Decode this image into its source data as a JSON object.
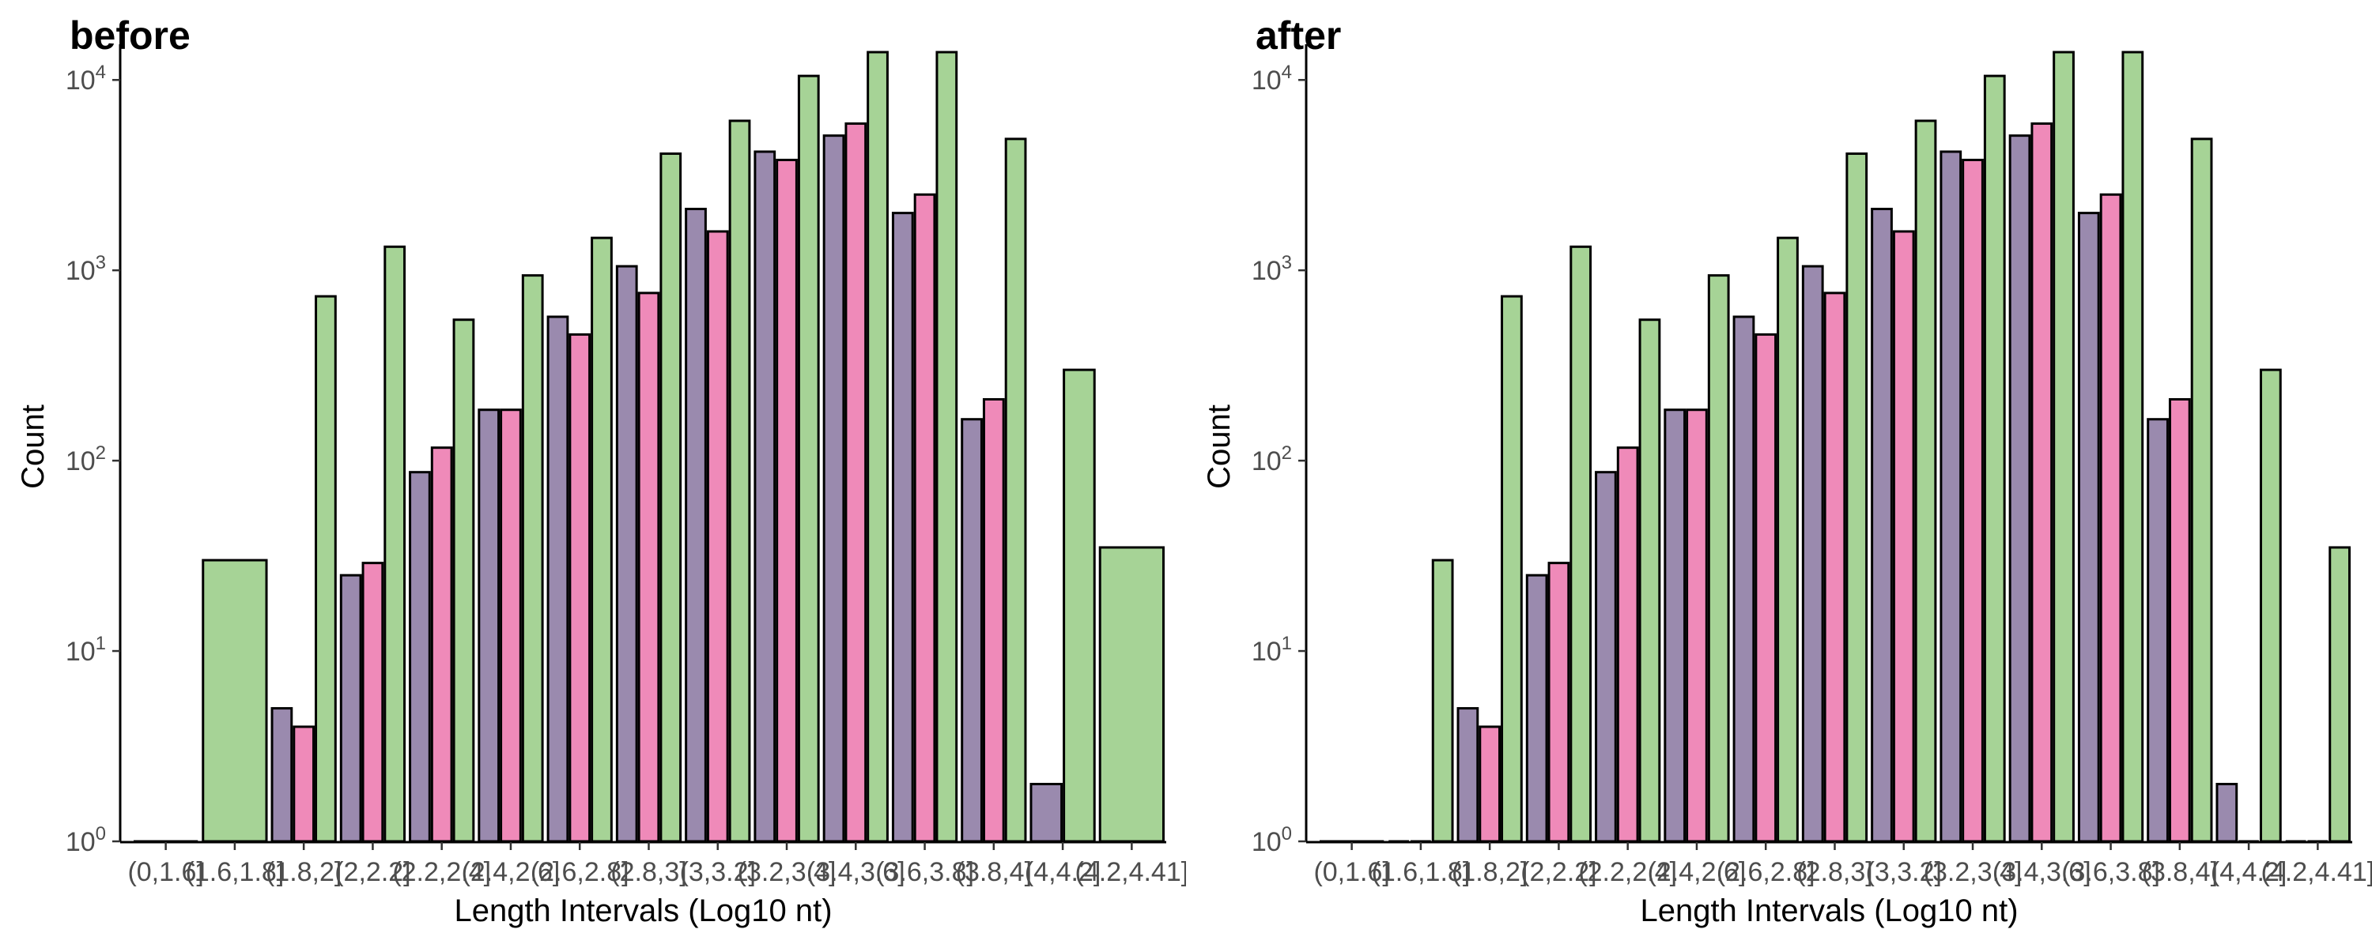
{
  "chart_data": [
    {
      "type": "bar",
      "title": "before",
      "xlabel": "Length Intervals (Log10 nt)",
      "ylabel": "Count",
      "scale": "log10",
      "ylim": [
        1,
        14000
      ],
      "yticks": [
        {
          "value": 1,
          "base": "10",
          "exp": "0"
        },
        {
          "value": 10,
          "base": "10",
          "exp": "1"
        },
        {
          "value": 100,
          "base": "10",
          "exp": "2"
        },
        {
          "value": 1000,
          "base": "10",
          "exp": "3"
        },
        {
          "value": 10000,
          "base": "10",
          "exp": "4"
        }
      ],
      "categories": [
        "(0,1.6]",
        "(1.6,1.8]",
        "(1.8,2]",
        "(2,2.2]",
        "(2.2,2.4]",
        "(2.4,2.6]",
        "(2.6,2.8]",
        "(2.8,3]",
        "(3,3.2]",
        "(3.2,3.4]",
        "(3.4,3.6]",
        "(3.6,3.8]",
        "(3.8,4]",
        "(4,4.2]",
        "(4.2,4.41]"
      ],
      "series_colors": [
        "#9a8aae",
        "#ef8ab9",
        "#a6d396"
      ],
      "groups": [
        {
          "values": [
            1
          ]
        },
        {
          "values": [
            30
          ]
        },
        {
          "values": [
            5,
            4,
            730
          ]
        },
        {
          "values": [
            25,
            29,
            1330
          ]
        },
        {
          "values": [
            87,
            117,
            550
          ]
        },
        {
          "values": [
            185,
            185,
            940
          ]
        },
        {
          "values": [
            570,
            460,
            1480
          ]
        },
        {
          "values": [
            1050,
            760,
            4100
          ]
        },
        {
          "values": [
            2100,
            1600,
            6100
          ]
        },
        {
          "values": [
            4200,
            3800,
            10500
          ]
        },
        {
          "values": [
            5100,
            5900,
            14000
          ]
        },
        {
          "values": [
            2000,
            2500,
            14000
          ]
        },
        {
          "values": [
            165,
            210,
            4900
          ]
        },
        {
          "values": [
            2,
            300
          ]
        },
        {
          "values": [
            35
          ]
        }
      ]
    },
    {
      "type": "bar",
      "title": "after",
      "xlabel": "Length Intervals (Log10 nt)",
      "ylabel": "Count",
      "scale": "log10",
      "ylim": [
        1,
        14000
      ],
      "yticks": [
        {
          "value": 1,
          "base": "10",
          "exp": "0"
        },
        {
          "value": 10,
          "base": "10",
          "exp": "1"
        },
        {
          "value": 100,
          "base": "10",
          "exp": "2"
        },
        {
          "value": 1000,
          "base": "10",
          "exp": "3"
        },
        {
          "value": 10000,
          "base": "10",
          "exp": "4"
        }
      ],
      "categories": [
        "(0,1.6]",
        "(1.6,1.8]",
        "(1.8,2]",
        "(2,2.2]",
        "(2.2,2.4]",
        "(2.4,2.6]",
        "(2.6,2.8]",
        "(2.8,3]",
        "(3,3.2]",
        "(3.2,3.4]",
        "(3.4,3.6]",
        "(3.6,3.8]",
        "(3.8,4]",
        "(4,4.2]",
        "(4.2,4.41]"
      ],
      "series_colors": [
        "#9a8aae",
        "#ef8ab9",
        "#a6d396"
      ],
      "groups": [
        {
          "values": [
            1
          ]
        },
        {
          "values": [
            1,
            1,
            30
          ]
        },
        {
          "values": [
            5,
            4,
            730
          ]
        },
        {
          "values": [
            25,
            29,
            1330
          ]
        },
        {
          "values": [
            87,
            117,
            550
          ]
        },
        {
          "values": [
            185,
            185,
            940
          ]
        },
        {
          "values": [
            570,
            460,
            1480
          ]
        },
        {
          "values": [
            1050,
            760,
            4100
          ]
        },
        {
          "values": [
            2100,
            1600,
            6100
          ]
        },
        {
          "values": [
            4200,
            3800,
            10500
          ]
        },
        {
          "values": [
            5100,
            5900,
            14000
          ]
        },
        {
          "values": [
            2000,
            2500,
            14000
          ]
        },
        {
          "values": [
            165,
            210,
            4900
          ]
        },
        {
          "values": [
            2,
            1,
            300
          ]
        },
        {
          "values": [
            1,
            1,
            35
          ]
        }
      ]
    }
  ]
}
